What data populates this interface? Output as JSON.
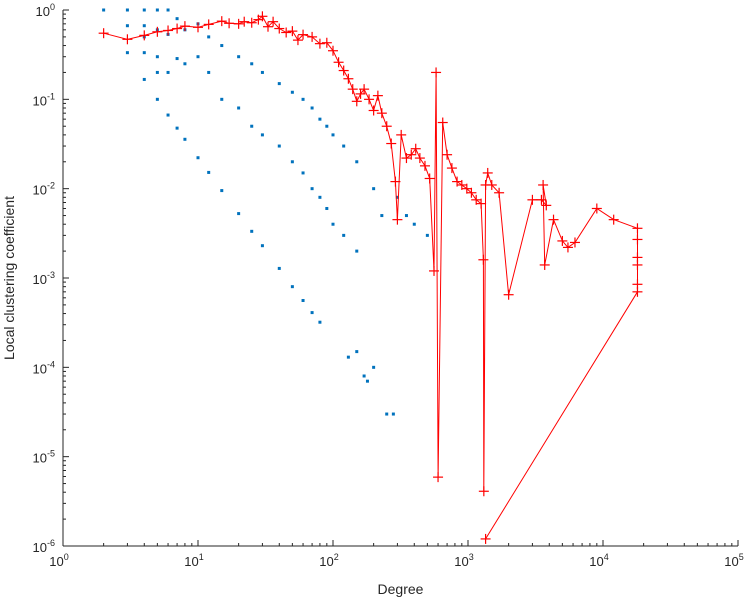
{
  "chart_data": {
    "type": "scatter",
    "xlabel": "Degree",
    "ylabel": "Local clustering coefficient",
    "xscale": "log",
    "yscale": "log",
    "xlim": [
      1,
      100000
    ],
    "ylim": [
      1e-06,
      1
    ],
    "grid": false,
    "legend": "none",
    "x_ticks": [
      {
        "base": "10",
        "exp": "0"
      },
      {
        "base": "10",
        "exp": "1"
      },
      {
        "base": "10",
        "exp": "2"
      },
      {
        "base": "10",
        "exp": "3"
      },
      {
        "base": "10",
        "exp": "4"
      },
      {
        "base": "10",
        "exp": "5"
      }
    ],
    "y_ticks": [
      {
        "base": "10",
        "exp": "-6"
      },
      {
        "base": "10",
        "exp": "-5"
      },
      {
        "base": "10",
        "exp": "-4"
      },
      {
        "base": "10",
        "exp": "-3"
      },
      {
        "base": "10",
        "exp": "-2"
      },
      {
        "base": "10",
        "exp": "-1"
      },
      {
        "base": "10",
        "exp": "0"
      }
    ],
    "colors": {
      "scatter": "#0072bd",
      "average": "#ff0000",
      "axis": "#262626"
    },
    "series": [
      {
        "style": "blue-dots",
        "points": [
          [
            2,
            1
          ],
          [
            3,
            1
          ],
          [
            3,
            0.667
          ],
          [
            3,
            0.333
          ],
          [
            4,
            1
          ],
          [
            4,
            0.667
          ],
          [
            4,
            0.5
          ],
          [
            4,
            0.333
          ],
          [
            4,
            0.167
          ],
          [
            5,
            1
          ],
          [
            5,
            0.6
          ],
          [
            5,
            0.3
          ],
          [
            5,
            0.2
          ],
          [
            5,
            0.1
          ],
          [
            6,
            1
          ],
          [
            6,
            0.533
          ],
          [
            6,
            0.2
          ],
          [
            6,
            0.0667
          ],
          [
            7,
            0.8
          ],
          [
            7,
            0.286
          ],
          [
            7,
            0.0476
          ],
          [
            8,
            0.6
          ],
          [
            8,
            0.25
          ],
          [
            8,
            0.0357
          ],
          [
            10,
            0.7
          ],
          [
            10,
            0.3
          ],
          [
            10,
            0.0222
          ],
          [
            12,
            0.5
          ],
          [
            12,
            0.2
          ],
          [
            12,
            0.0152
          ],
          [
            15,
            0.4
          ],
          [
            15,
            0.1
          ],
          [
            15,
            0.00952
          ],
          [
            20,
            0.3
          ],
          [
            20,
            0.08
          ],
          [
            20,
            0.00526
          ],
          [
            25,
            0.25
          ],
          [
            25,
            0.05
          ],
          [
            25,
            0.00333
          ],
          [
            30,
            0.2
          ],
          [
            30,
            0.04
          ],
          [
            30,
            0.0023
          ],
          [
            40,
            0.15
          ],
          [
            40,
            0.03
          ],
          [
            40,
            0.00128
          ],
          [
            50,
            0.12
          ],
          [
            50,
            0.02
          ],
          [
            50,
            0.0008
          ],
          [
            60,
            0.1
          ],
          [
            60,
            0.015
          ],
          [
            60,
            0.00056
          ],
          [
            70,
            0.08
          ],
          [
            70,
            0.01
          ],
          [
            70,
            0.00041
          ],
          [
            80,
            0.06
          ],
          [
            80,
            0.008
          ],
          [
            80,
            0.00032
          ],
          [
            90,
            0.05
          ],
          [
            90,
            0.006
          ],
          [
            100,
            0.04
          ],
          [
            100,
            0.004
          ],
          [
            120,
            0.03
          ],
          [
            120,
            0.003
          ],
          [
            130,
            0.00013
          ],
          [
            150,
            0.02
          ],
          [
            150,
            0.002
          ],
          [
            150,
            0.00015
          ],
          [
            170,
            8e-05
          ],
          [
            180,
            7e-05
          ],
          [
            200,
            0.01
          ],
          [
            200,
            0.0001
          ],
          [
            230,
            0.005
          ],
          [
            250,
            3e-05
          ],
          [
            280,
            3e-05
          ],
          [
            300,
            0.008
          ],
          [
            350,
            0.005
          ],
          [
            400,
            0.004
          ],
          [
            500,
            0.003
          ]
        ]
      },
      {
        "style": "red-crosses-with-line",
        "points": [
          [
            2,
            0.55
          ],
          [
            3,
            0.47
          ],
          [
            4,
            0.52
          ],
          [
            5,
            0.57
          ],
          [
            6,
            0.59
          ],
          [
            7,
            0.62
          ],
          [
            8,
            0.66
          ],
          [
            10,
            0.64
          ],
          [
            12,
            0.69
          ],
          [
            15,
            0.75
          ],
          [
            17,
            0.71
          ],
          [
            20,
            0.7
          ],
          [
            22,
            0.74
          ],
          [
            25,
            0.72
          ],
          [
            28,
            0.78
          ],
          [
            30,
            0.85
          ],
          [
            33,
            0.65
          ],
          [
            36,
            0.74
          ],
          [
            40,
            0.62
          ],
          [
            45,
            0.56
          ],
          [
            50,
            0.58
          ],
          [
            55,
            0.46
          ],
          [
            60,
            0.53
          ],
          [
            70,
            0.5
          ],
          [
            80,
            0.42
          ],
          [
            90,
            0.43
          ],
          [
            100,
            0.35
          ],
          [
            110,
            0.26
          ],
          [
            120,
            0.21
          ],
          [
            130,
            0.17
          ],
          [
            140,
            0.13
          ],
          [
            150,
            0.095
          ],
          [
            160,
            0.115
          ],
          [
            170,
            0.13
          ],
          [
            185,
            0.1
          ],
          [
            200,
            0.075
          ],
          [
            215,
            0.11
          ],
          [
            230,
            0.07
          ],
          [
            250,
            0.05
          ],
          [
            270,
            0.032
          ],
          [
            290,
            0.012
          ],
          [
            300,
            0.0045
          ],
          [
            320,
            0.04
          ],
          [
            350,
            0.022
          ],
          [
            380,
            0.024
          ],
          [
            410,
            0.028
          ],
          [
            440,
            0.022
          ],
          [
            480,
            0.018
          ],
          [
            520,
            0.013
          ],
          [
            560,
            0.0012
          ],
          [
            580,
            0.2
          ],
          [
            600,
            5.9e-06
          ],
          [
            650,
            0.055
          ],
          [
            700,
            0.024
          ],
          [
            760,
            0.017
          ],
          [
            830,
            0.012
          ],
          [
            900,
            0.011
          ],
          [
            980,
            0.01
          ],
          [
            1060,
            0.009
          ],
          [
            1150,
            0.0075
          ],
          [
            1250,
            0.0068
          ],
          [
            1300,
            0.0016
          ],
          [
            1310,
            4.1e-06
          ],
          [
            1350,
            0.011
          ],
          [
            1400,
            0.015
          ],
          [
            1500,
            0.011
          ],
          [
            1700,
            0.009
          ],
          [
            2000,
            0.00065
          ],
          [
            3000,
            0.0075
          ],
          [
            3500,
            0.0075
          ],
          [
            3800,
            0.0065
          ],
          [
            3600,
            0.011
          ],
          [
            3700,
            0.0014
          ],
          [
            4300,
            0.0045
          ],
          [
            5000,
            0.0026
          ],
          [
            5500,
            0.0022
          ],
          [
            6200,
            0.0025
          ],
          [
            9000,
            0.006
          ],
          [
            12000,
            0.0045
          ],
          [
            18000,
            0.0036
          ],
          [
            18000,
            0.0027
          ],
          [
            18000,
            0.0017
          ],
          [
            18000,
            0.0014
          ],
          [
            18000,
            0.00085
          ],
          [
            18000,
            0.0007
          ],
          [
            1350,
            1.2e-06
          ]
        ]
      }
    ]
  }
}
